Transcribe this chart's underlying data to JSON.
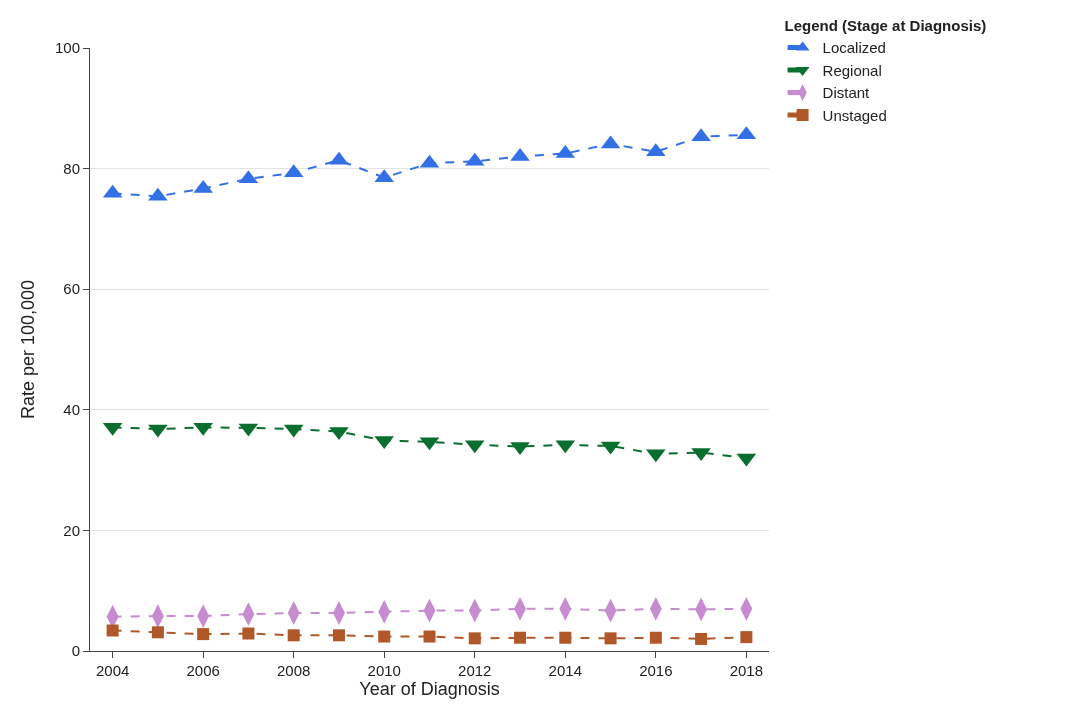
{
  "chart_data": {
    "type": "line",
    "xlabel": "Year of Diagnosis",
    "ylabel": "Rate per 100,000",
    "legend_title": "Legend (Stage at Diagnosis)",
    "x": [
      2004,
      2005,
      2006,
      2007,
      2008,
      2009,
      2010,
      2011,
      2012,
      2013,
      2014,
      2015,
      2016,
      2017,
      2018
    ],
    "series": [
      {
        "name": "Localized",
        "color": "#3370e6",
        "marker": "triangle",
        "values": [
          75.9,
          75.4,
          76.7,
          78.3,
          79.3,
          81.4,
          78.5,
          80.9,
          81.2,
          82.0,
          82.5,
          84.1,
          82.8,
          85.3,
          85.6
        ]
      },
      {
        "name": "Regional",
        "color": "#0a6e2e",
        "marker": "triangle-down",
        "values": [
          37.1,
          36.8,
          37.1,
          37.0,
          36.8,
          36.4,
          34.9,
          34.7,
          34.2,
          33.9,
          34.2,
          34.0,
          32.7,
          32.9,
          32.0
        ]
      },
      {
        "name": "Distant",
        "color": "#c78bd0",
        "marker": "diamond",
        "values": [
          5.7,
          5.8,
          5.8,
          6.1,
          6.3,
          6.3,
          6.5,
          6.7,
          6.7,
          7.0,
          7.0,
          6.7,
          7.0,
          6.9,
          7.0
        ]
      },
      {
        "name": "Unstaged",
        "color": "#b0582a",
        "marker": "square",
        "values": [
          3.4,
          3.1,
          2.8,
          2.9,
          2.6,
          2.6,
          2.4,
          2.4,
          2.1,
          2.2,
          2.2,
          2.1,
          2.2,
          2.0,
          2.3
        ]
      }
    ],
    "xlim": [
      2003.5,
      2018.5
    ],
    "xticks": [
      2004,
      2006,
      2008,
      2010,
      2012,
      2014,
      2016,
      2018
    ],
    "ylim": [
      0,
      100
    ],
    "yticks": [
      0,
      20,
      40,
      60,
      80,
      100
    ],
    "grid": "y",
    "legend": "top right",
    "line_style": "dashed"
  }
}
